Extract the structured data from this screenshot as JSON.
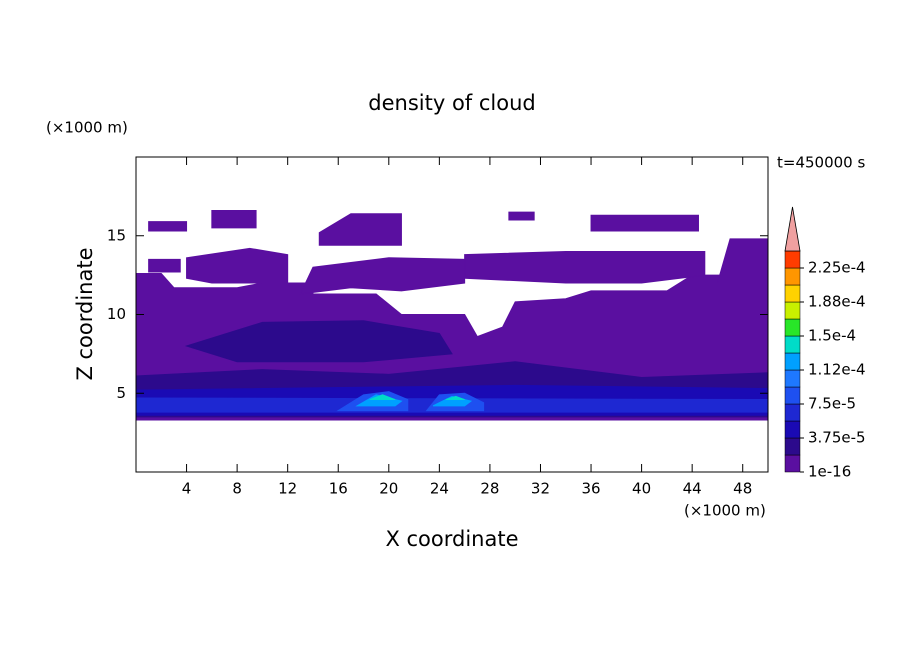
{
  "chart_data": {
    "type": "contour",
    "title": "density of cloud",
    "x_label": "X coordinate",
    "y_label": "Z coordinate",
    "x_unit": "(×1000 m)",
    "y_unit": "(×1000 m)",
    "annotation": "t=450000 s",
    "xlim": [
      0,
      50
    ],
    "ylim": [
      0,
      20
    ],
    "xticks": [
      4,
      8,
      12,
      16,
      20,
      24,
      28,
      32,
      36,
      40,
      44,
      48
    ],
    "yticks": [
      5,
      10,
      15
    ],
    "colorbar": {
      "levels": [
        1e-16,
        1.875e-05,
        3.75e-05,
        5.625e-05,
        7.5e-05,
        9.375e-05,
        0.0001125,
        0.00013125,
        0.00015,
        0.00016875,
        0.0001875,
        0.00020625,
        0.000225
      ],
      "colors": [
        "#5a0fa0",
        "#2c0a8c",
        "#1a0ab4",
        "#1e28d2",
        "#1e50f0",
        "#1e78ff",
        "#00a0ff",
        "#00dcc8",
        "#28e628",
        "#c8f000",
        "#ffd200",
        "#ff9600",
        "#ff3c00"
      ],
      "over_color": "#f0a0a0",
      "ticks": [
        1e-16,
        {
          "value": 3.75e-05,
          "label": "3.75e-5"
        },
        {
          "value": 7.5e-05,
          "label": "7.5e-5"
        },
        {
          "value": 0.0001125,
          "label": "1.12e-4"
        },
        {
          "value": 0.00015,
          "label": "1.5e-4"
        },
        {
          "value": 0.0001875,
          "label": "1.88e-4"
        },
        {
          "value": 0.000225,
          "label": "2.25e-4"
        }
      ]
    },
    "regions": [
      {
        "value": 1e-16,
        "points": [
          [
            0,
            3.3
          ],
          [
            50,
            3.3
          ],
          [
            50,
            12.5
          ],
          [
            44,
            12.5
          ],
          [
            42,
            11.5
          ],
          [
            36,
            11.5
          ],
          [
            34,
            11
          ],
          [
            30,
            10.8
          ],
          [
            29,
            9.2
          ],
          [
            27,
            8.6
          ],
          [
            26,
            10
          ],
          [
            21,
            10
          ],
          [
            19,
            11.3
          ],
          [
            14,
            11.3
          ],
          [
            14,
            12
          ],
          [
            10,
            12
          ],
          [
            8,
            11.7
          ],
          [
            3,
            11.7
          ],
          [
            2,
            12.6
          ],
          [
            0,
            12.6
          ]
        ]
      },
      {
        "value": 1e-16,
        "points": [
          [
            6,
            15.5
          ],
          [
            9.5,
            15.5
          ],
          [
            9.5,
            16.6
          ],
          [
            6,
            16.6
          ]
        ]
      },
      {
        "value": 1e-16,
        "points": [
          [
            1,
            15.3
          ],
          [
            4,
            15.3
          ],
          [
            4,
            15.9
          ],
          [
            1,
            15.9
          ]
        ]
      },
      {
        "value": 1e-16,
        "points": [
          [
            1,
            12.7
          ],
          [
            3.5,
            12.7
          ],
          [
            3.5,
            13.5
          ],
          [
            1,
            13.5
          ]
        ]
      },
      {
        "value": 1e-16,
        "points": [
          [
            4,
            12.3
          ],
          [
            6,
            12
          ],
          [
            12,
            12
          ],
          [
            12,
            13.8
          ],
          [
            9,
            14.2
          ],
          [
            4,
            13.6
          ]
        ]
      },
      {
        "value": 1e-16,
        "points": [
          [
            13,
            11.3
          ],
          [
            17,
            11.7
          ],
          [
            21,
            11.5
          ],
          [
            26,
            12
          ],
          [
            26,
            13.5
          ],
          [
            20,
            13.6
          ],
          [
            14,
            13
          ]
        ]
      },
      {
        "value": 1e-16,
        "points": [
          [
            14.5,
            14.4
          ],
          [
            21,
            14.4
          ],
          [
            21,
            16.4
          ],
          [
            17,
            16.4
          ],
          [
            14.5,
            15.2
          ]
        ]
      },
      {
        "value": 1e-16,
        "points": [
          [
            26,
            12.3
          ],
          [
            34,
            12
          ],
          [
            40,
            12
          ],
          [
            45,
            12.5
          ],
          [
            45,
            14
          ],
          [
            34,
            14
          ],
          [
            26,
            13.8
          ]
        ]
      },
      {
        "value": 1e-16,
        "points": [
          [
            36,
            15.3
          ],
          [
            44.5,
            15.3
          ],
          [
            44.5,
            16.3
          ],
          [
            36,
            16.3
          ]
        ]
      },
      {
        "value": 1e-16,
        "points": [
          [
            29.5,
            16
          ],
          [
            31.5,
            16
          ],
          [
            31.5,
            16.5
          ],
          [
            29.5,
            16.5
          ]
        ]
      },
      {
        "value": 1e-16,
        "points": [
          [
            46,
            12
          ],
          [
            50,
            12
          ],
          [
            50,
            14.8
          ],
          [
            47,
            14.8
          ]
        ]
      },
      {
        "value": 1.875e-05,
        "points": [
          [
            0,
            3.5
          ],
          [
            50,
            3.5
          ],
          [
            50,
            6.3
          ],
          [
            40,
            6
          ],
          [
            30,
            7
          ],
          [
            20,
            6.2
          ],
          [
            10,
            6.5
          ],
          [
            0,
            6.1
          ]
        ]
      },
      {
        "value": 1.875e-05,
        "points": [
          [
            4,
            8
          ],
          [
            10,
            9.5
          ],
          [
            18,
            9.6
          ],
          [
            24,
            8.8
          ],
          [
            25,
            7.5
          ],
          [
            18,
            7
          ],
          [
            8,
            7
          ]
        ]
      },
      {
        "value": 3.75e-05,
        "points": [
          [
            0,
            3.6
          ],
          [
            50,
            3.6
          ],
          [
            50,
            5.3
          ],
          [
            30,
            5.5
          ],
          [
            20,
            5.4
          ],
          [
            0,
            5.2
          ]
        ]
      },
      {
        "value": 5.625e-05,
        "points": [
          [
            0,
            3.8
          ],
          [
            50,
            3.8
          ],
          [
            50,
            4.6
          ],
          [
            0,
            4.7
          ]
        ]
      },
      {
        "value": 7.5e-05,
        "points": [
          [
            16,
            3.9
          ],
          [
            18,
            4.9
          ],
          [
            20,
            5.1
          ],
          [
            21.5,
            4.6
          ],
          [
            21.5,
            3.9
          ]
        ]
      },
      {
        "value": 7.5e-05,
        "points": [
          [
            23,
            3.9
          ],
          [
            24,
            4.9
          ],
          [
            26,
            5
          ],
          [
            27.5,
            4.4
          ],
          [
            27.5,
            3.9
          ]
        ]
      },
      {
        "value": 0.0001125,
        "points": [
          [
            17.5,
            4.2
          ],
          [
            19,
            4.9
          ],
          [
            21,
            4.5
          ],
          [
            20.5,
            4.2
          ]
        ]
      },
      {
        "value": 0.0001125,
        "points": [
          [
            23.5,
            4.2
          ],
          [
            25,
            4.8
          ],
          [
            26.5,
            4.5
          ],
          [
            26,
            4.2
          ]
        ]
      },
      {
        "value": 0.00013125,
        "points": [
          [
            18.5,
            4.6
          ],
          [
            19.5,
            4.9
          ],
          [
            20.5,
            4.6
          ]
        ]
      },
      {
        "value": 0.00013125,
        "points": [
          [
            24.5,
            4.6
          ],
          [
            25.3,
            4.8
          ],
          [
            26,
            4.6
          ]
        ]
      }
    ]
  }
}
